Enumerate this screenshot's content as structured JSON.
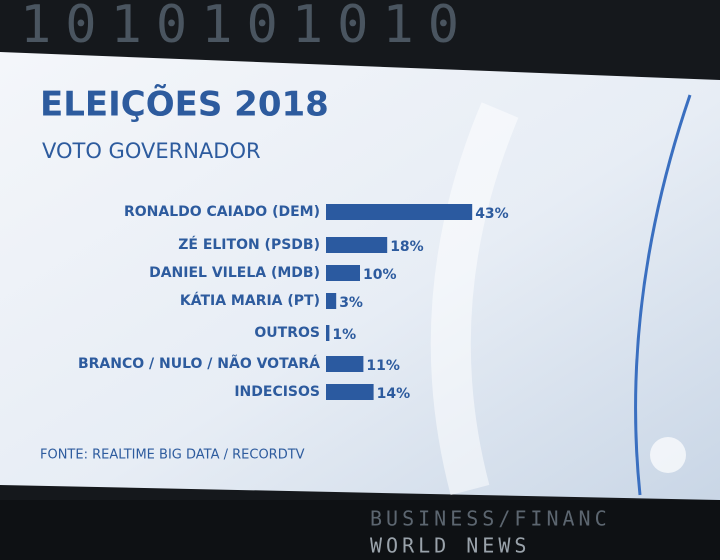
{
  "chart_data": {
    "type": "barh",
    "title": "ELEIÇÕES 2018",
    "subtitle": "VOTO GOVERNADOR",
    "categories": [
      "RONALDO CAIADO (DEM)",
      "ZÉ ELITON (PSDB)",
      "DANIEL VILELA (MDB)",
      "KÁTIA MARIA (PT)",
      "OUTROS",
      "BRANCO / NULO / NÃO VOTARÁ",
      "INDECISOS"
    ],
    "values": [
      43,
      18,
      10,
      3,
      1,
      11,
      14
    ],
    "value_labels": [
      "43%",
      "18%",
      "10%",
      "3%",
      "1%",
      "11%",
      "14%"
    ],
    "color": "#2b5aa0",
    "source": "FONTE: REALTIME BIG DATA / RECORDTV"
  },
  "scene": {
    "top_display": "1010101010",
    "ticker": [
      "BUSINESS/FINANC",
      "WORLD NEWS"
    ]
  }
}
